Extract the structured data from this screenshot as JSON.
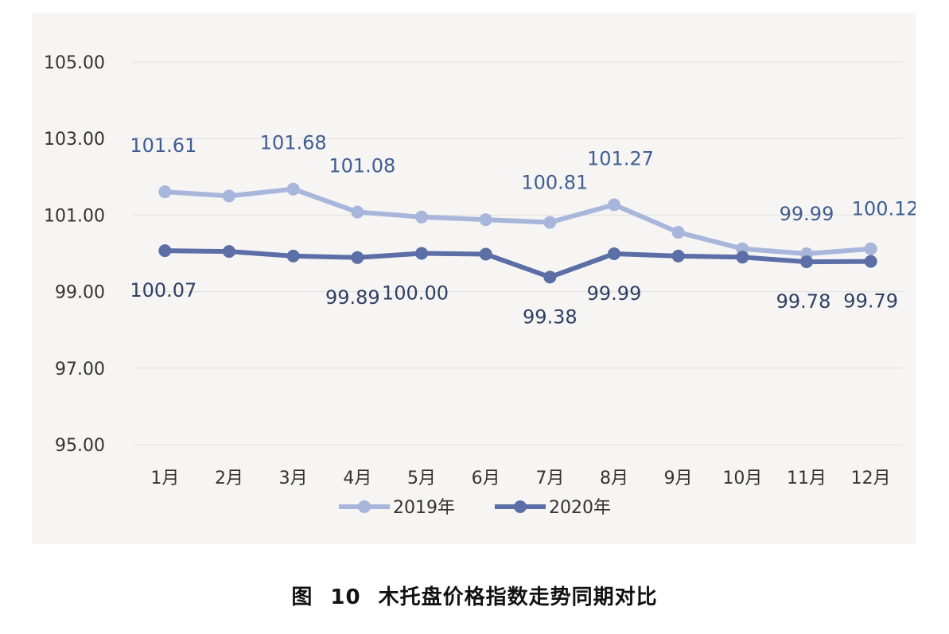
{
  "caption": {
    "prefix": "图",
    "number": "10",
    "title": "木托盘价格指数走势同期对比"
  },
  "colors": {
    "series_2019": "#a8b6dc",
    "series_2020": "#5b6fa6",
    "label_2019": "#3f5d92",
    "label_2020": "#2e3f63",
    "grid": "#e2e0de",
    "tick": "#333333",
    "panel": "#f6f5f4"
  },
  "chart_data": {
    "type": "line",
    "title": "",
    "xlabel": "",
    "ylabel": "",
    "categories": [
      "1月",
      "2月",
      "3月",
      "4月",
      "5月",
      "6月",
      "7月",
      "8月",
      "9月",
      "10月",
      "11月",
      "12月"
    ],
    "ylim": [
      95,
      105
    ],
    "yticks": [
      "95.00",
      "97.00",
      "99.00",
      "101.00",
      "103.00",
      "105.00"
    ],
    "grid": true,
    "legend": "bottom",
    "series": [
      {
        "name": "2019年",
        "values": [
          101.61,
          101.5,
          101.68,
          101.08,
          100.95,
          100.88,
          100.81,
          101.27,
          100.55,
          100.12,
          99.99,
          100.12
        ],
        "labels": [
          "101.61",
          "",
          "101.68",
          "101.08",
          "",
          "",
          "100.81",
          "101.27",
          "",
          "",
          "99.99",
          "100.12"
        ]
      },
      {
        "name": "2020年",
        "values": [
          100.07,
          100.05,
          99.93,
          99.89,
          100.0,
          99.98,
          99.38,
          99.99,
          99.93,
          99.9,
          99.78,
          99.79
        ],
        "labels": [
          "100.07",
          "",
          "",
          "99.89",
          "100.00",
          "",
          "99.38",
          "99.99",
          "",
          "",
          "99.78",
          "99.79"
        ]
      }
    ]
  }
}
